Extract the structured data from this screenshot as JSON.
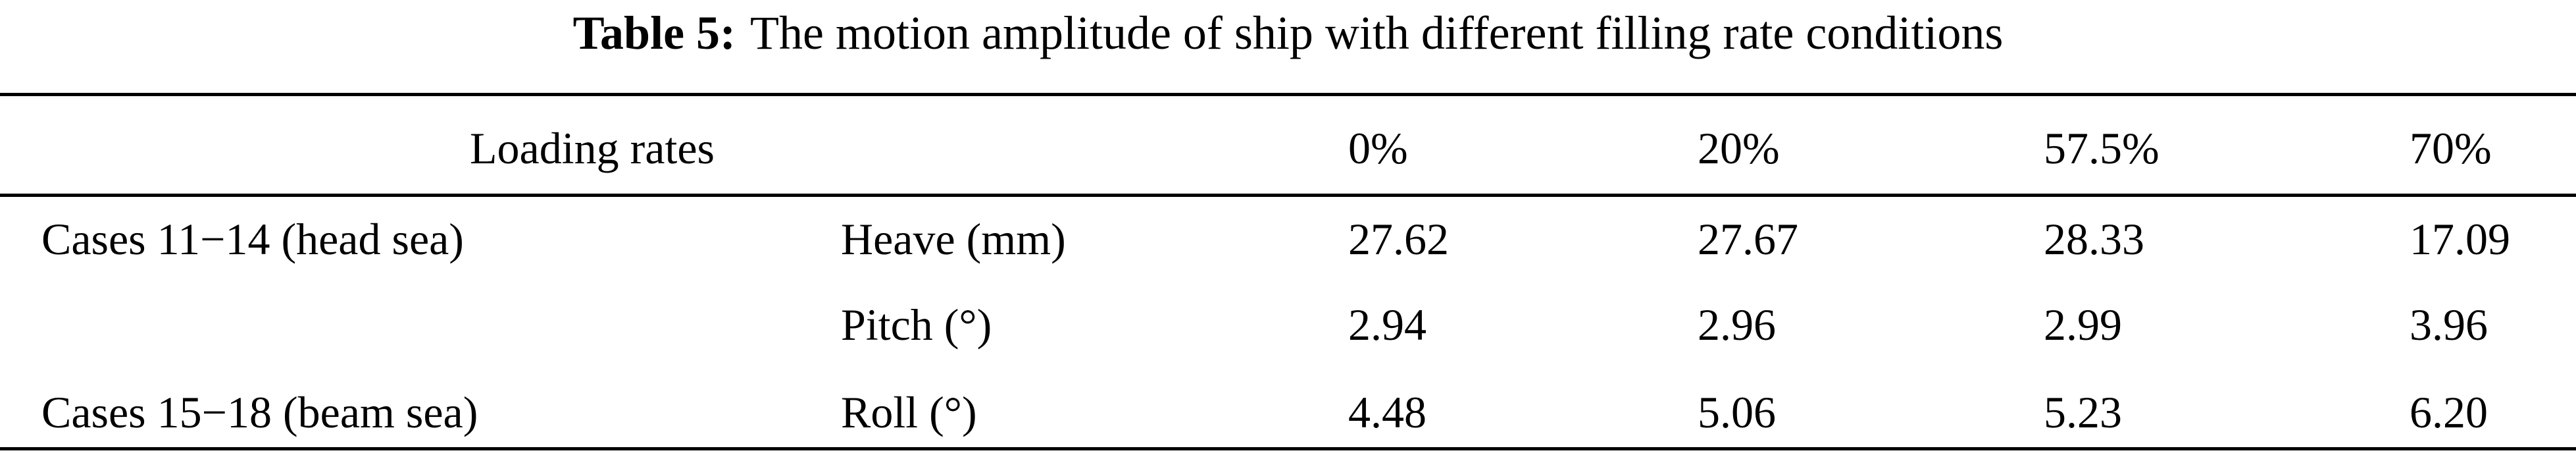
{
  "table": {
    "caption": {
      "label": "Table 5:",
      "text": "The motion amplitude of ship with different filling rate conditions"
    },
    "header": [
      "Loading rates",
      "0%",
      "20%",
      "57.5%",
      "70%"
    ],
    "rows": [
      {
        "group": "Cases 11−14 (head sea)",
        "measure": "Heave (mm)",
        "values": [
          "27.62",
          "27.67",
          "28.33",
          "17.09"
        ]
      },
      {
        "measure": "Pitch (°)",
        "values": [
          "2.94",
          "2.96",
          "2.99",
          "3.96"
        ]
      },
      {
        "group": "Cases 15−18 (beam sea)",
        "measure": "Roll (°)",
        "values": [
          "4.48",
          "5.06",
          "5.23",
          "6.20"
        ]
      }
    ]
  }
}
